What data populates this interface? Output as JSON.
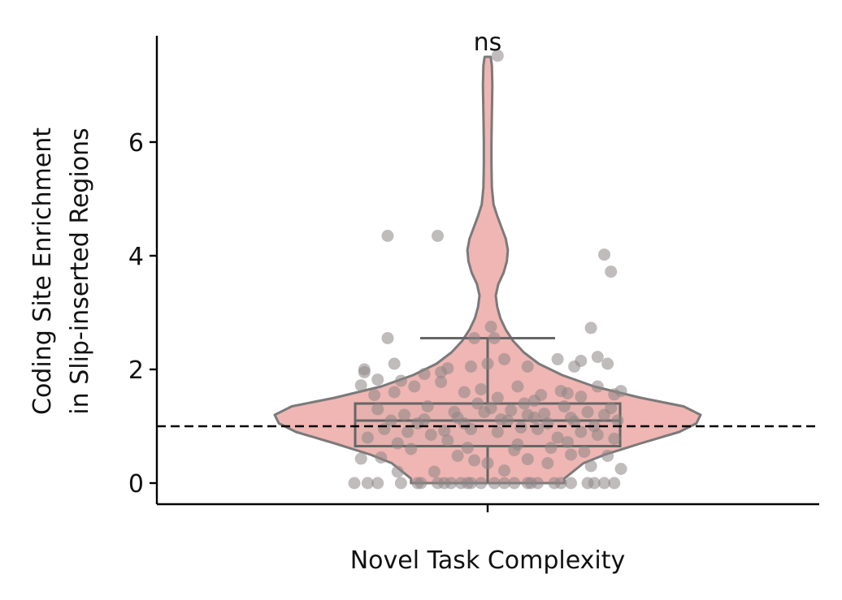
{
  "chart_data": {
    "type": "violin",
    "categories": [
      "Novel Task Complexity"
    ],
    "xlabel": "Novel Task Complexity",
    "ylabel_lines": [
      "Coding Site Enrichment",
      "in Slip-inserted Regions"
    ],
    "ylim": [
      -0.38,
      7.8
    ],
    "yticks": [
      0,
      2,
      4,
      6
    ],
    "ytick_labels": [
      "0",
      "2",
      "4",
      "6"
    ],
    "reference_line": {
      "y": 1.0,
      "style": "dashed"
    },
    "annotation": {
      "text": "ns",
      "y": 7.5
    },
    "box": {
      "q1": 0.65,
      "median": 1.1,
      "q3": 1.4,
      "whisker_low": 0.0,
      "whisker_high": 2.55
    },
    "violin_profile": [
      [
        0.0,
        0.36
      ],
      [
        0.08,
        0.36
      ],
      [
        0.2,
        0.4
      ],
      [
        0.35,
        0.45
      ],
      [
        0.5,
        0.55
      ],
      [
        0.7,
        0.72
      ],
      [
        0.9,
        0.9
      ],
      [
        1.05,
        0.98
      ],
      [
        1.2,
        1.0
      ],
      [
        1.35,
        0.92
      ],
      [
        1.5,
        0.72
      ],
      [
        1.7,
        0.5
      ],
      [
        1.9,
        0.35
      ],
      [
        2.1,
        0.24
      ],
      [
        2.3,
        0.17
      ],
      [
        2.5,
        0.12
      ],
      [
        2.7,
        0.085
      ],
      [
        2.9,
        0.06
      ],
      [
        3.1,
        0.045
      ],
      [
        3.3,
        0.038
      ],
      [
        3.5,
        0.05
      ],
      [
        3.7,
        0.075
      ],
      [
        3.9,
        0.09
      ],
      [
        4.1,
        0.095
      ],
      [
        4.3,
        0.085
      ],
      [
        4.5,
        0.065
      ],
      [
        4.7,
        0.045
      ],
      [
        4.9,
        0.028
      ],
      [
        5.2,
        0.02
      ],
      [
        5.6,
        0.018
      ],
      [
        6.0,
        0.018
      ],
      [
        6.5,
        0.02
      ],
      [
        7.0,
        0.022
      ],
      [
        7.35,
        0.02
      ],
      [
        7.5,
        0.014
      ]
    ],
    "points": [
      [
        -0.4,
        0.0
      ],
      [
        -0.36,
        0.0
      ],
      [
        -0.33,
        0.0
      ],
      [
        -0.26,
        0.0
      ],
      [
        -0.21,
        0.0
      ],
      [
        -0.2,
        0.0
      ],
      [
        -0.15,
        0.0
      ],
      [
        -0.13,
        0.0
      ],
      [
        -0.11,
        0.0
      ],
      [
        -0.08,
        0.0
      ],
      [
        -0.06,
        0.0
      ],
      [
        -0.05,
        0.0
      ],
      [
        -0.02,
        0.0
      ],
      [
        0.02,
        0.0
      ],
      [
        0.05,
        0.0
      ],
      [
        0.08,
        0.0
      ],
      [
        0.12,
        0.0
      ],
      [
        0.13,
        0.0
      ],
      [
        0.15,
        0.0
      ],
      [
        0.2,
        0.0
      ],
      [
        0.22,
        0.0
      ],
      [
        0.25,
        0.0
      ],
      [
        0.3,
        0.0
      ],
      [
        0.32,
        0.0
      ],
      [
        0.35,
        0.0
      ],
      [
        0.38,
        0.0
      ],
      [
        -0.38,
        0.43
      ],
      [
        -0.32,
        0.45
      ],
      [
        -0.27,
        0.2
      ],
      [
        -0.16,
        0.2
      ],
      [
        -0.09,
        0.48
      ],
      [
        -0.04,
        0.4
      ],
      [
        0.0,
        0.35
      ],
      [
        0.05,
        0.22
      ],
      [
        0.12,
        0.42
      ],
      [
        0.18,
        0.35
      ],
      [
        0.25,
        0.5
      ],
      [
        0.31,
        0.3
      ],
      [
        0.36,
        0.48
      ],
      [
        0.4,
        0.25
      ],
      [
        -0.34,
        1.55
      ],
      [
        -0.28,
        1.6
      ],
      [
        -0.22,
        1.7
      ],
      [
        -0.14,
        1.78
      ],
      [
        -0.07,
        1.6
      ],
      [
        -0.02,
        1.65
      ],
      [
        0.03,
        1.5
      ],
      [
        0.09,
        1.7
      ],
      [
        0.16,
        1.55
      ],
      [
        0.22,
        1.62
      ],
      [
        0.28,
        1.52
      ],
      [
        0.33,
        1.7
      ],
      [
        0.38,
        1.56
      ],
      [
        0.4,
        1.62
      ],
      [
        -0.38,
        1.72
      ],
      [
        -0.33,
        1.82
      ],
      [
        -0.26,
        1.8
      ],
      [
        -0.19,
        1.92
      ],
      [
        -0.12,
        2.02
      ],
      [
        -0.05,
        2.05
      ],
      [
        0.0,
        2.1
      ],
      [
        0.05,
        2.18
      ],
      [
        0.12,
        2.05
      ],
      [
        0.21,
        2.18
      ],
      [
        0.26,
        2.05
      ],
      [
        0.28,
        2.15
      ],
      [
        0.33,
        2.22
      ],
      [
        0.36,
        2.1
      ],
      [
        -0.37,
        2.0
      ],
      [
        -0.37,
        1.95
      ],
      [
        -0.28,
        2.1
      ],
      [
        -0.14,
        1.95
      ],
      [
        -0.04,
        2.55
      ],
      [
        0.01,
        2.75
      ],
      [
        0.02,
        2.55
      ],
      [
        0.14,
        1.45
      ],
      [
        0.24,
        1.58
      ],
      [
        -0.3,
        2.55
      ],
      [
        0.31,
        2.73
      ],
      [
        -0.3,
        4.35
      ],
      [
        -0.15,
        4.35
      ],
      [
        0.35,
        4.02
      ],
      [
        0.37,
        3.72
      ],
      [
        0.03,
        7.52
      ],
      [
        -0.36,
        0.8
      ],
      [
        -0.31,
        0.95
      ],
      [
        -0.27,
        0.7
      ],
      [
        -0.21,
        1.05
      ],
      [
        -0.17,
        0.85
      ],
      [
        -0.12,
        0.75
      ],
      [
        -0.09,
        1.15
      ],
      [
        -0.05,
        0.95
      ],
      [
        -0.01,
        1.25
      ],
      [
        0.03,
        0.9
      ],
      [
        0.06,
        1.1
      ],
      [
        0.09,
        0.68
      ],
      [
        0.12,
        1.2
      ],
      [
        0.15,
        0.95
      ],
      [
        0.18,
        1.05
      ],
      [
        0.21,
        0.8
      ],
      [
        0.25,
        1.15
      ],
      [
        0.28,
        0.9
      ],
      [
        0.32,
        1.0
      ],
      [
        0.35,
        1.2
      ],
      [
        0.38,
        0.78
      ],
      [
        -0.33,
        1.3
      ],
      [
        -0.25,
        1.2
      ],
      [
        -0.18,
        1.35
      ],
      [
        -0.1,
        1.25
      ],
      [
        -0.03,
        1.4
      ],
      [
        0.01,
        1.32
      ],
      [
        0.07,
        1.28
      ],
      [
        0.11,
        1.4
      ],
      [
        0.17,
        1.22
      ],
      [
        0.23,
        1.35
      ],
      [
        0.3,
        1.25
      ],
      [
        0.37,
        1.32
      ],
      [
        -0.23,
        0.6
      ],
      [
        -0.06,
        0.62
      ],
      [
        0.08,
        0.58
      ],
      [
        0.19,
        0.62
      ],
      [
        0.29,
        0.55
      ],
      [
        -0.29,
        1.1
      ],
      [
        -0.19,
        1.12
      ],
      [
        -0.07,
        1.05
      ],
      [
        0.04,
        1.12
      ],
      [
        0.14,
        1.15
      ],
      [
        0.26,
        1.08
      ],
      [
        0.39,
        1.1
      ],
      [
        -0.13,
        0.92
      ],
      [
        0.1,
        0.98
      ],
      [
        0.24,
        0.72
      ],
      [
        -0.24,
        0.9
      ],
      [
        0.33,
        0.85
      ]
    ]
  }
}
